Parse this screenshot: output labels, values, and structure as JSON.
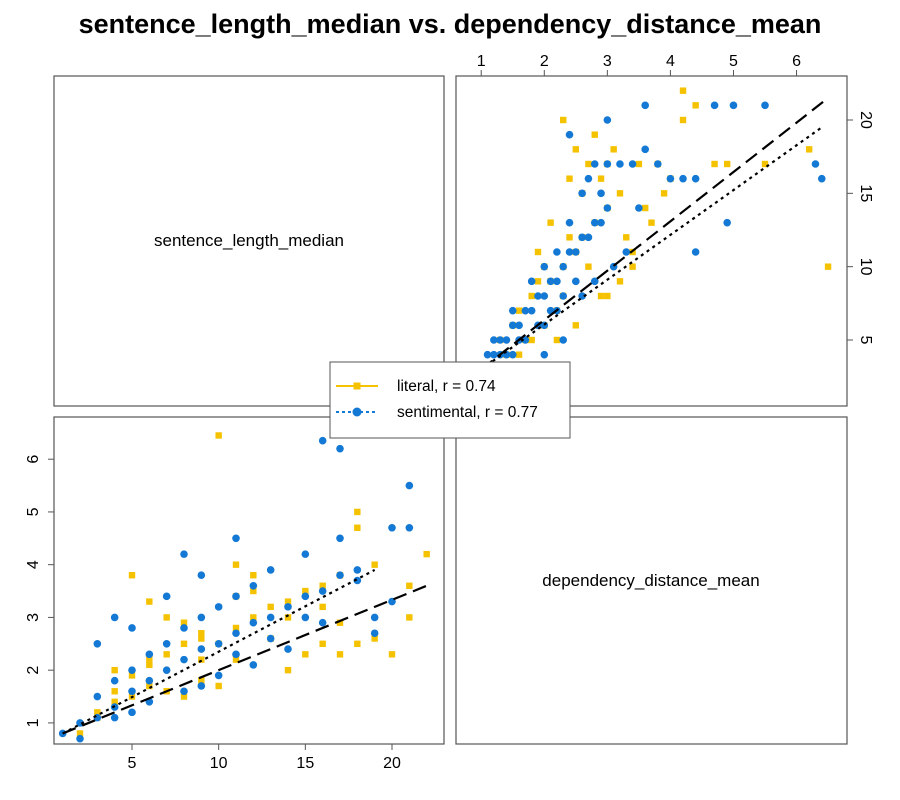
{
  "title": "sentence_length_median vs. dependency_distance_mean",
  "diagonal_labels": {
    "top_left": "sentence_length_median",
    "bottom_right": "dependency_distance_mean"
  },
  "colors": {
    "literal": "#F5C200",
    "sentimental": "#1479D4",
    "fit": "#000000"
  },
  "legend": {
    "placement": "center",
    "entries": [
      {
        "text": "literal, r = 0.74",
        "marker": "square",
        "line": "solid",
        "color": "#F5C200"
      },
      {
        "text": "sentimental, r = 0.77",
        "marker": "circle",
        "line": "dotted",
        "color": "#1479D4"
      }
    ]
  },
  "chart_data": [
    {
      "type": "scatter",
      "panel": "top-right",
      "x_axis": {
        "variable": "dependency_distance_mean",
        "position": "top",
        "range": [
          0.6,
          6.8
        ],
        "ticks": [
          1,
          2,
          3,
          4,
          5,
          6
        ]
      },
      "y_axis": {
        "variable": "sentence_length_median",
        "position": "right",
        "range": [
          0.5,
          23
        ],
        "ticks": [
          5,
          10,
          15,
          20
        ]
      },
      "fit_lines": [
        {
          "series": "literal",
          "style": "long-dash",
          "from": [
            1.0,
            3.0
          ],
          "to": [
            6.5,
            21.5
          ]
        },
        {
          "series": "sentimental",
          "style": "dotted",
          "from": [
            1.0,
            3.0
          ],
          "to": [
            6.4,
            19.5
          ]
        }
      ],
      "series": [
        {
          "name": "literal",
          "marker": "square",
          "points": [
            [
              1.5,
              6
            ],
            [
              1.6,
              7
            ],
            [
              1.9,
              9
            ],
            [
              2.3,
              10
            ],
            [
              2.5,
              11
            ],
            [
              1.8,
              8
            ],
            [
              2.1,
              9
            ],
            [
              2.6,
              12
            ],
            [
              2.8,
              13
            ],
            [
              3.0,
              14
            ],
            [
              3.2,
              15
            ],
            [
              2.4,
              16
            ],
            [
              2.7,
              17
            ],
            [
              3.1,
              18
            ],
            [
              3.5,
              17
            ],
            [
              3.8,
              17
            ],
            [
              4.0,
              16
            ],
            [
              4.2,
              20
            ],
            [
              4.4,
              21
            ],
            [
              4.2,
              22
            ],
            [
              3.3,
              12
            ],
            [
              3.7,
              13
            ],
            [
              2.0,
              6
            ],
            [
              1.7,
              5
            ],
            [
              2.2,
              7
            ],
            [
              2.9,
              8
            ],
            [
              1.4,
              4
            ],
            [
              1.3,
              5
            ],
            [
              3.4,
              10
            ],
            [
              2.3,
              20
            ],
            [
              3.9,
              15
            ],
            [
              4.7,
              17
            ],
            [
              5.5,
              17
            ],
            [
              4.9,
              17
            ],
            [
              6.5,
              10
            ],
            [
              6.2,
              18
            ],
            [
              3.6,
              14
            ],
            [
              2.5,
              18
            ],
            [
              2.8,
              19
            ],
            [
              3.0,
              17
            ],
            [
              1.9,
              11
            ],
            [
              2.1,
              13
            ],
            [
              2.6,
              15
            ],
            [
              2.2,
              5
            ],
            [
              3.2,
              9
            ],
            [
              2.5,
              6
            ],
            [
              1.8,
              5
            ],
            [
              2.0,
              10
            ],
            [
              2.4,
              12
            ],
            [
              2.7,
              10
            ],
            [
              3.0,
              8
            ],
            [
              1.6,
              4
            ],
            [
              2.9,
              16
            ],
            [
              3.4,
              11
            ],
            [
              2.3,
              8
            ]
          ]
        },
        {
          "name": "sentimental",
          "marker": "circle",
          "points": [
            [
              1.0,
              3
            ],
            [
              1.1,
              4
            ],
            [
              1.2,
              4
            ],
            [
              1.3,
              5
            ],
            [
              1.4,
              5
            ],
            [
              1.5,
              6
            ],
            [
              1.6,
              6
            ],
            [
              1.7,
              7
            ],
            [
              1.8,
              7
            ],
            [
              1.9,
              8
            ],
            [
              2.0,
              8
            ],
            [
              2.1,
              9
            ],
            [
              2.2,
              9
            ],
            [
              2.3,
              10
            ],
            [
              2.4,
              11
            ],
            [
              2.5,
              11
            ],
            [
              2.6,
              12
            ],
            [
              2.7,
              12
            ],
            [
              2.8,
              13
            ],
            [
              2.9,
              13
            ],
            [
              3.0,
              14
            ],
            [
              1.2,
              5
            ],
            [
              1.5,
              7
            ],
            [
              1.8,
              9
            ],
            [
              2.0,
              10
            ],
            [
              2.2,
              11
            ],
            [
              2.4,
              13
            ],
            [
              2.6,
              15
            ],
            [
              2.8,
              17
            ],
            [
              3.0,
              17
            ],
            [
              3.2,
              17
            ],
            [
              3.4,
              17
            ],
            [
              3.6,
              18
            ],
            [
              3.8,
              17
            ],
            [
              4.0,
              16
            ],
            [
              4.2,
              16
            ],
            [
              4.4,
              16
            ],
            [
              4.7,
              21
            ],
            [
              5.0,
              21
            ],
            [
              5.5,
              21
            ],
            [
              6.3,
              17
            ],
            [
              6.4,
              16
            ],
            [
              4.9,
              13
            ],
            [
              4.4,
              11
            ],
            [
              3.5,
              14
            ],
            [
              1.7,
              5
            ],
            [
              1.9,
              6
            ],
            [
              2.1,
              7
            ],
            [
              2.3,
              8
            ],
            [
              2.5,
              9
            ],
            [
              1.4,
              4
            ],
            [
              1.6,
              5
            ],
            [
              2.0,
              6
            ],
            [
              2.2,
              7
            ],
            [
              2.6,
              8
            ],
            [
              2.8,
              9
            ],
            [
              3.1,
              10
            ],
            [
              3.3,
              11
            ],
            [
              1.1,
              3
            ],
            [
              1.3,
              4
            ],
            [
              3.0,
              20
            ],
            [
              3.6,
              21
            ],
            [
              2.4,
              19
            ],
            [
              2.7,
              16
            ],
            [
              2.9,
              15
            ],
            [
              2.0,
              4
            ],
            [
              1.5,
              4
            ],
            [
              2.3,
              5
            ]
          ]
        }
      ]
    },
    {
      "type": "scatter",
      "panel": "bottom-left",
      "x_axis": {
        "variable": "sentence_length_median",
        "position": "bottom",
        "range": [
          0.5,
          23
        ],
        "ticks": [
          5,
          10,
          15,
          20
        ]
      },
      "y_axis": {
        "variable": "dependency_distance_mean",
        "position": "left",
        "range": [
          0.6,
          6.8
        ],
        "ticks": [
          1,
          2,
          3,
          4,
          5,
          6
        ]
      },
      "fit_lines": [
        {
          "series": "literal",
          "style": "long-dash",
          "from": [
            1,
            0.8
          ],
          "to": [
            22,
            3.6
          ]
        },
        {
          "series": "sentimental",
          "style": "dotted",
          "from": [
            1,
            0.8
          ],
          "to": [
            19,
            3.9
          ]
        }
      ],
      "series": [
        {
          "name": "literal",
          "marker": "square",
          "points": [
            [
              2,
              0.8
            ],
            [
              3,
              1.2
            ],
            [
              4,
              1.6
            ],
            [
              5,
              1.9
            ],
            [
              6,
              2.1
            ],
            [
              7,
              2.3
            ],
            [
              8,
              2.5
            ],
            [
              9,
              2.6
            ],
            [
              10,
              6.45
            ],
            [
              11,
              2.8
            ],
            [
              12,
              3.0
            ],
            [
              13,
              3.2
            ],
            [
              14,
              3.3
            ],
            [
              15,
              3.5
            ],
            [
              16,
              3.6
            ],
            [
              17,
              3.8
            ],
            [
              18,
              4.7
            ],
            [
              19,
              4.0
            ],
            [
              20,
              2.3
            ],
            [
              21,
              3.0
            ],
            [
              22,
              4.2
            ],
            [
              5,
              3.8
            ],
            [
              6,
              3.3
            ],
            [
              7,
              3.0
            ],
            [
              8,
              2.9
            ],
            [
              9,
              2.7
            ],
            [
              10,
              2.5
            ],
            [
              11,
              3.4
            ],
            [
              12,
              3.8
            ],
            [
              13,
              2.6
            ],
            [
              14,
              2.0
            ],
            [
              15,
              2.3
            ],
            [
              16,
              2.5
            ],
            [
              17,
              2.9
            ],
            [
              18,
              2.5
            ],
            [
              19,
              2.6
            ],
            [
              21,
              3.6
            ],
            [
              4,
              1.4
            ],
            [
              5,
              1.5
            ],
            [
              6,
              1.7
            ],
            [
              7,
              1.6
            ],
            [
              8,
              1.5
            ],
            [
              9,
              1.8
            ],
            [
              10,
              1.7
            ],
            [
              11,
              4.0
            ],
            [
              12,
              3.5
            ],
            [
              14,
              3.0
            ],
            [
              16,
              3.2
            ],
            [
              17,
              2.3
            ],
            [
              18,
              5.0
            ],
            [
              3,
              1.1
            ],
            [
              4,
              2.0
            ],
            [
              6,
              2.2
            ],
            [
              9,
              2.2
            ],
            [
              11,
              2.2
            ]
          ]
        },
        {
          "name": "sentimental",
          "marker": "circle",
          "points": [
            [
              1,
              0.8
            ],
            [
              2,
              0.7
            ],
            [
              2,
              1.0
            ],
            [
              3,
              1.1
            ],
            [
              3,
              1.5
            ],
            [
              4,
              1.3
            ],
            [
              4,
              1.8
            ],
            [
              5,
              1.6
            ],
            [
              5,
              2.0
            ],
            [
              6,
              1.8
            ],
            [
              6,
              2.3
            ],
            [
              7,
              2.0
            ],
            [
              7,
              2.5
            ],
            [
              8,
              2.2
            ],
            [
              8,
              2.8
            ],
            [
              9,
              2.4
            ],
            [
              9,
              3.0
            ],
            [
              10,
              2.5
            ],
            [
              10,
              3.2
            ],
            [
              11,
              2.7
            ],
            [
              11,
              3.4
            ],
            [
              12,
              2.9
            ],
            [
              12,
              3.6
            ],
            [
              13,
              3.0
            ],
            [
              14,
              3.2
            ],
            [
              15,
              3.4
            ],
            [
              16,
              3.5
            ],
            [
              17,
              3.8
            ],
            [
              18,
              3.9
            ],
            [
              19,
              3.0
            ],
            [
              20,
              4.7
            ],
            [
              21,
              5.5
            ],
            [
              21,
              4.7
            ],
            [
              16,
              6.35
            ],
            [
              17,
              6.2
            ],
            [
              11,
              4.5
            ],
            [
              8,
              4.2
            ],
            [
              4,
              3.0
            ],
            [
              3,
              2.5
            ],
            [
              5,
              2.8
            ],
            [
              7,
              3.4
            ],
            [
              9,
              3.8
            ],
            [
              13,
              3.9
            ],
            [
              15,
              4.2
            ],
            [
              17,
              4.5
            ],
            [
              19,
              2.7
            ],
            [
              14,
              2.4
            ],
            [
              12,
              2.1
            ],
            [
              10,
              1.9
            ],
            [
              6,
              1.4
            ],
            [
              5,
              1.2
            ],
            [
              4,
              1.1
            ],
            [
              8,
              1.6
            ],
            [
              9,
              1.7
            ],
            [
              20,
              3.3
            ],
            [
              18,
              3.7
            ],
            [
              16,
              2.9
            ],
            [
              15,
              3.0
            ],
            [
              13,
              2.6
            ],
            [
              11,
              2.3
            ]
          ]
        }
      ]
    }
  ]
}
